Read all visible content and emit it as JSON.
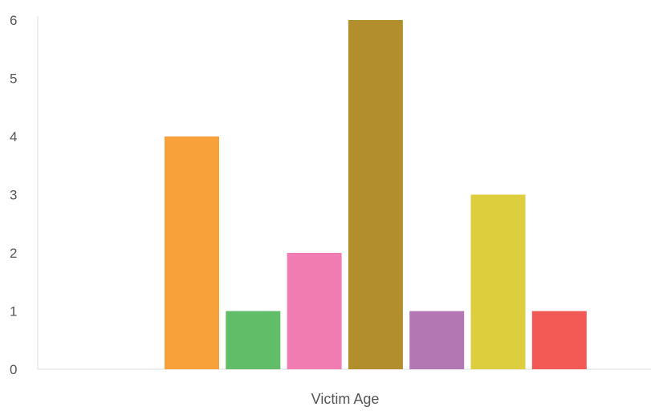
{
  "chart_data": {
    "type": "bar",
    "title": "",
    "xlabel": "Victim Age",
    "ylabel": "",
    "ylim": [
      0,
      6
    ],
    "yticks": [
      0,
      1,
      2,
      3,
      4,
      5,
      6
    ],
    "grid": false,
    "legend": "none",
    "categories": [
      "",
      "",
      "",
      "",
      "",
      "",
      ""
    ],
    "values": [
      4,
      1,
      2,
      6,
      1,
      3,
      1
    ],
    "colors": [
      "#f8a13a",
      "#62bd69",
      "#f07cb1",
      "#b28e2d",
      "#b377b3",
      "#dcce3c",
      "#f25a55"
    ]
  }
}
